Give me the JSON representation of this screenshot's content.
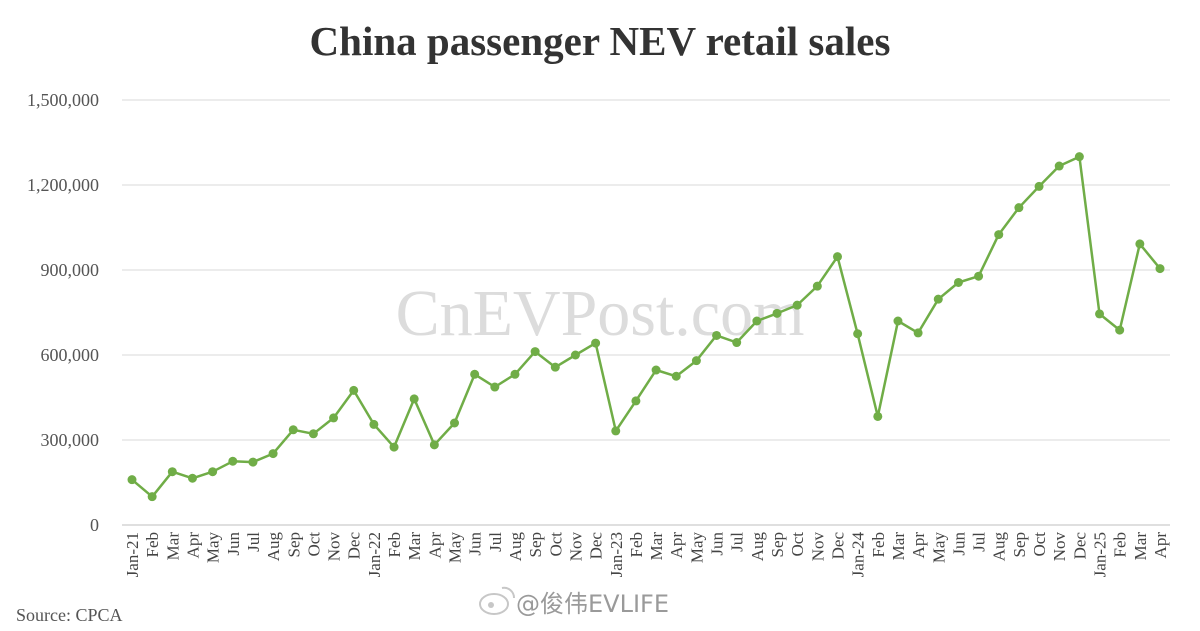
{
  "chart_data": {
    "type": "line",
    "title": "China passenger NEV retail sales",
    "xlabel": "",
    "ylabel": "",
    "ylim": [
      0,
      1500000
    ],
    "yticks": [
      0,
      300000,
      600000,
      900000,
      1200000,
      1500000
    ],
    "ytick_labels": [
      "0",
      "300,000",
      "600,000",
      "900,000",
      "1,200,000",
      "1,500,000"
    ],
    "grid": true,
    "legend": "none",
    "series_color": "#70ad47",
    "categories": [
      "Jan-21",
      "Feb",
      "Mar",
      "Apr",
      "May",
      "Jun",
      "Jul",
      "Aug",
      "Sep",
      "Oct",
      "Nov",
      "Dec",
      "Jan-22",
      "Feb",
      "Mar",
      "Apr",
      "May",
      "Jun",
      "Jul",
      "Aug",
      "Sep",
      "Oct",
      "Nov",
      "Dec",
      "Jan-23",
      "Feb",
      "Mar",
      "Apr",
      "May",
      "Jun",
      "Jul",
      "Aug",
      "Sep",
      "Oct",
      "Nov",
      "Dec",
      "Jan-24",
      "Feb",
      "Mar",
      "Apr",
      "May",
      "Jun",
      "Jul",
      "Aug",
      "Sep",
      "Oct",
      "Nov",
      "Dec",
      "Jan-25",
      "Feb",
      "Mar",
      "Apr"
    ],
    "series": [
      {
        "values": [
          160000,
          100000,
          188000,
          165000,
          188000,
          225000,
          222000,
          252000,
          336000,
          322000,
          378000,
          475000,
          355000,
          275000,
          445000,
          283000,
          360000,
          532000,
          487000,
          532000,
          612000,
          557000,
          600000,
          642000,
          332000,
          438000,
          547000,
          525000,
          580000,
          669000,
          644000,
          720000,
          747000,
          776000,
          843000,
          947000,
          675000,
          383000,
          720000,
          678000,
          797000,
          856000,
          878000,
          1025000,
          1120000,
          1195000,
          1267000,
          1300000,
          745000,
          688000,
          992000,
          905000
        ]
      }
    ]
  },
  "source": "Source: CPCA",
  "watermark": "CnEVPost.com",
  "credit": "@俊伟EVLIFE"
}
